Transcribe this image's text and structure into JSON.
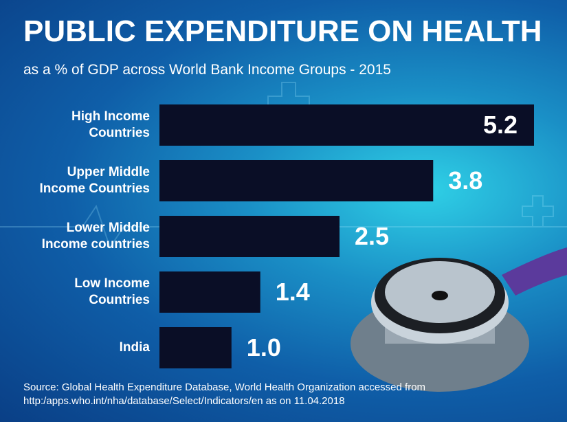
{
  "chart_data": {
    "type": "bar",
    "orientation": "horizontal",
    "title": "PUBLIC EXPENDITURE ON HEALTH",
    "subtitle": "as a % of GDP across World Bank Income Groups - 2015",
    "categories": [
      "High Income Countries",
      "Upper Middle Income Countries",
      "Lower Middle Income countries",
      "Low Income Countries",
      "India"
    ],
    "values": [
      5.2,
      3.8,
      2.5,
      1.4,
      1.0
    ],
    "value_labels": [
      "5.2",
      "3.8",
      "2.5",
      "1.4",
      "1.0"
    ],
    "color": "#0a0e26",
    "source": [
      "Source: Global Health Expenditure Database, World Health Organization accessed from",
      "http:/apps.who.int/nha/database/Select/Indicators/en as on 11.04.2018"
    ]
  }
}
